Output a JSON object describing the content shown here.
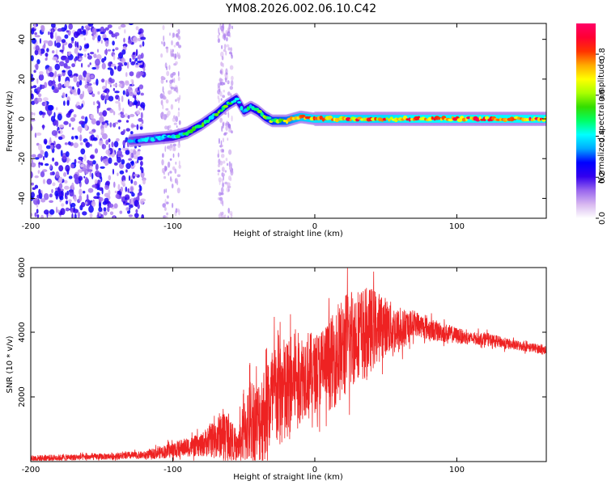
{
  "title": "YM08.2026.002.06.10.C42",
  "chart_data": [
    {
      "type": "heatmap",
      "name": "spectrogram",
      "xlabel": "Height of straight line (km)",
      "ylabel": "Frequency (Hz)",
      "xlim": [
        -200,
        163
      ],
      "ylim": [
        -50,
        48
      ],
      "xticks": [
        -200,
        -100,
        0,
        100
      ],
      "yticks": [
        -40,
        -20,
        0,
        20,
        40
      ],
      "colorbar": {
        "label": "Normalized spectral amplitude",
        "range": [
          0,
          0.95
        ],
        "ticks": [
          0.0,
          0.2,
          0.4,
          0.6,
          0.8
        ],
        "tick_labels": [
          "0.0",
          "0.2",
          "0.4",
          "0.6",
          "0.8"
        ],
        "stops": [
          "#ffffff",
          "#d8b8f0",
          "#9966ee",
          "#3300ee",
          "#0000ff",
          "#00aaff",
          "#00ffff",
          "#00ff66",
          "#33dd00",
          "#aaff00",
          "#ffff00",
          "#ffaa00",
          "#ff3300",
          "#ff0033",
          "#ff0066"
        ]
      },
      "ridge": {
        "x": [
          -130,
          -115,
          -100,
          -90,
          -80,
          -70,
          -62,
          -55,
          -50,
          -45,
          -40,
          -35,
          -30,
          -20,
          -10,
          0,
          20,
          50,
          70,
          100,
          130,
          163
        ],
        "freq": [
          -11,
          -10,
          -9,
          -7,
          -3,
          2,
          7,
          10,
          4,
          6,
          4,
          1,
          -1,
          -1,
          1,
          0,
          0,
          0,
          0,
          0,
          0,
          0
        ],
        "peak_amplitude": [
          0.35,
          0.4,
          0.45,
          0.5,
          0.55,
          0.55,
          0.6,
          0.5,
          0.45,
          0.5,
          0.55,
          0.6,
          0.65,
          0.7,
          0.8,
          0.85,
          0.85,
          0.85,
          0.9,
          0.9,
          0.9,
          0.9
        ]
      },
      "noise_region_km": [
        -200,
        -120
      ]
    },
    {
      "type": "line",
      "name": "snr",
      "xlabel": "Height of straight line (km)",
      "ylabel": "SNR (10 * v/v)",
      "xlim": [
        -200,
        163
      ],
      "ylim": [
        0,
        6000
      ],
      "xticks": [
        -200,
        -100,
        0,
        100
      ],
      "yticks": [
        2000,
        4000,
        6000
      ],
      "series": [
        {
          "name": "SNR",
          "color": "#ee2222",
          "x": [
            -200,
            -150,
            -120,
            -100,
            -90,
            -80,
            -75,
            -70,
            -65,
            -60,
            -55,
            -50,
            -45,
            -40,
            -35,
            -30,
            -25,
            -20,
            -15,
            -10,
            -5,
            0,
            5,
            10,
            15,
            20,
            25,
            30,
            35,
            40,
            50,
            60,
            70,
            80,
            90,
            100,
            110,
            120,
            130,
            140,
            150,
            163
          ],
          "values": [
            100,
            150,
            200,
            350,
            450,
            500,
            650,
            700,
            900,
            800,
            400,
            900,
            1300,
            1200,
            1600,
            1900,
            2200,
            2000,
            2500,
            2600,
            2800,
            2700,
            2900,
            3000,
            3200,
            3500,
            3800,
            4000,
            3900,
            4100,
            4200,
            4000,
            4300,
            4100,
            4000,
            3900,
            3800,
            3800,
            3700,
            3600,
            3550,
            3450
          ],
          "noise_amplitude": [
            100,
            100,
            120,
            250,
            300,
            350,
            500,
            600,
            800,
            700,
            400,
            1000,
            1400,
            1300,
            1600,
            1700,
            1800,
            1800,
            1500,
            1400,
            1300,
            1200,
            1300,
            1400,
            1500,
            1600,
            1700,
            1400,
            1500,
            1300,
            900,
            700,
            400,
            350,
            300,
            250,
            200,
            200,
            180,
            160,
            150,
            130
          ]
        }
      ]
    }
  ]
}
